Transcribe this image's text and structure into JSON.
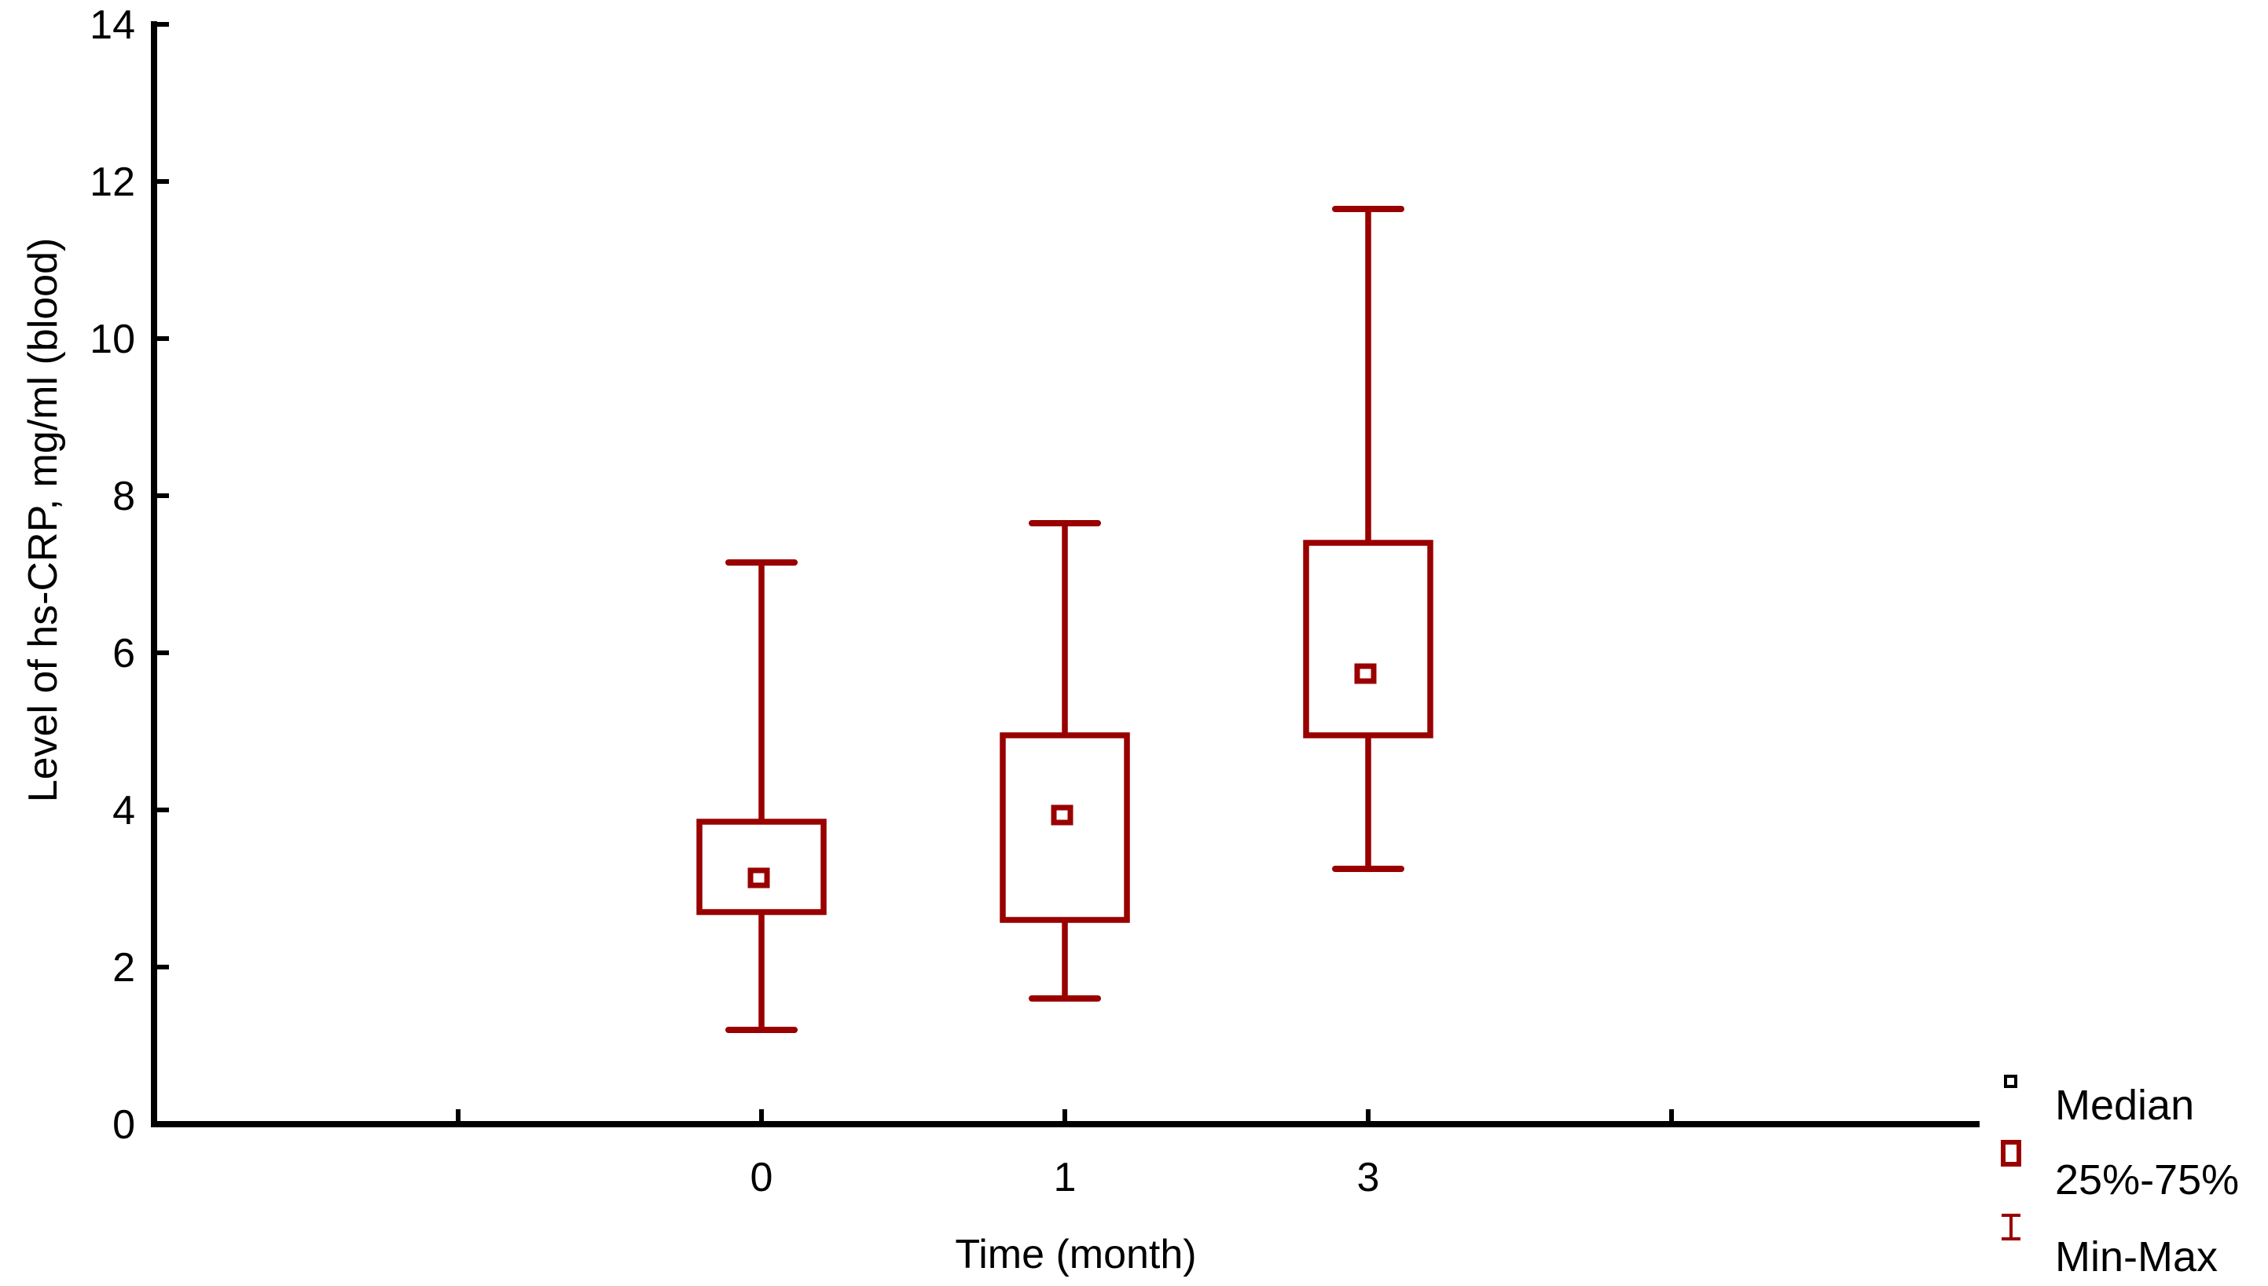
{
  "figure": {
    "background": "#ffffff",
    "accent_color": "#990000",
    "axis_color": "#000000"
  },
  "chart_data": {
    "type": "box",
    "title": "",
    "xlabel": "Time (month)",
    "ylabel": "Level of hs-CRP, mg/ml (blood)",
    "ylim": [
      0,
      14
    ],
    "yticks": [
      0,
      2,
      4,
      6,
      8,
      10,
      12,
      14
    ],
    "categories": [
      "0",
      "1",
      "3"
    ],
    "grid": false,
    "legend_position": "bottom-right",
    "boxes": [
      {
        "category": "0",
        "min": 1.2,
        "q1": 2.7,
        "median": 3.1,
        "q3": 3.85,
        "max": 7.15
      },
      {
        "category": "1",
        "min": 1.6,
        "q1": 2.6,
        "median": 3.9,
        "q3": 4.95,
        "max": 7.65
      },
      {
        "category": "3",
        "min": 3.25,
        "q1": 4.95,
        "median": 5.7,
        "q3": 7.4,
        "max": 11.65
      }
    ],
    "legend": [
      {
        "label": "Median",
        "marker": "open-square-small",
        "color": "#000000"
      },
      {
        "label": "25%-75%",
        "marker": "open-rectangle",
        "color": "#990000"
      },
      {
        "label": "Min-Max",
        "marker": "error-bar",
        "color": "#990000"
      }
    ]
  }
}
